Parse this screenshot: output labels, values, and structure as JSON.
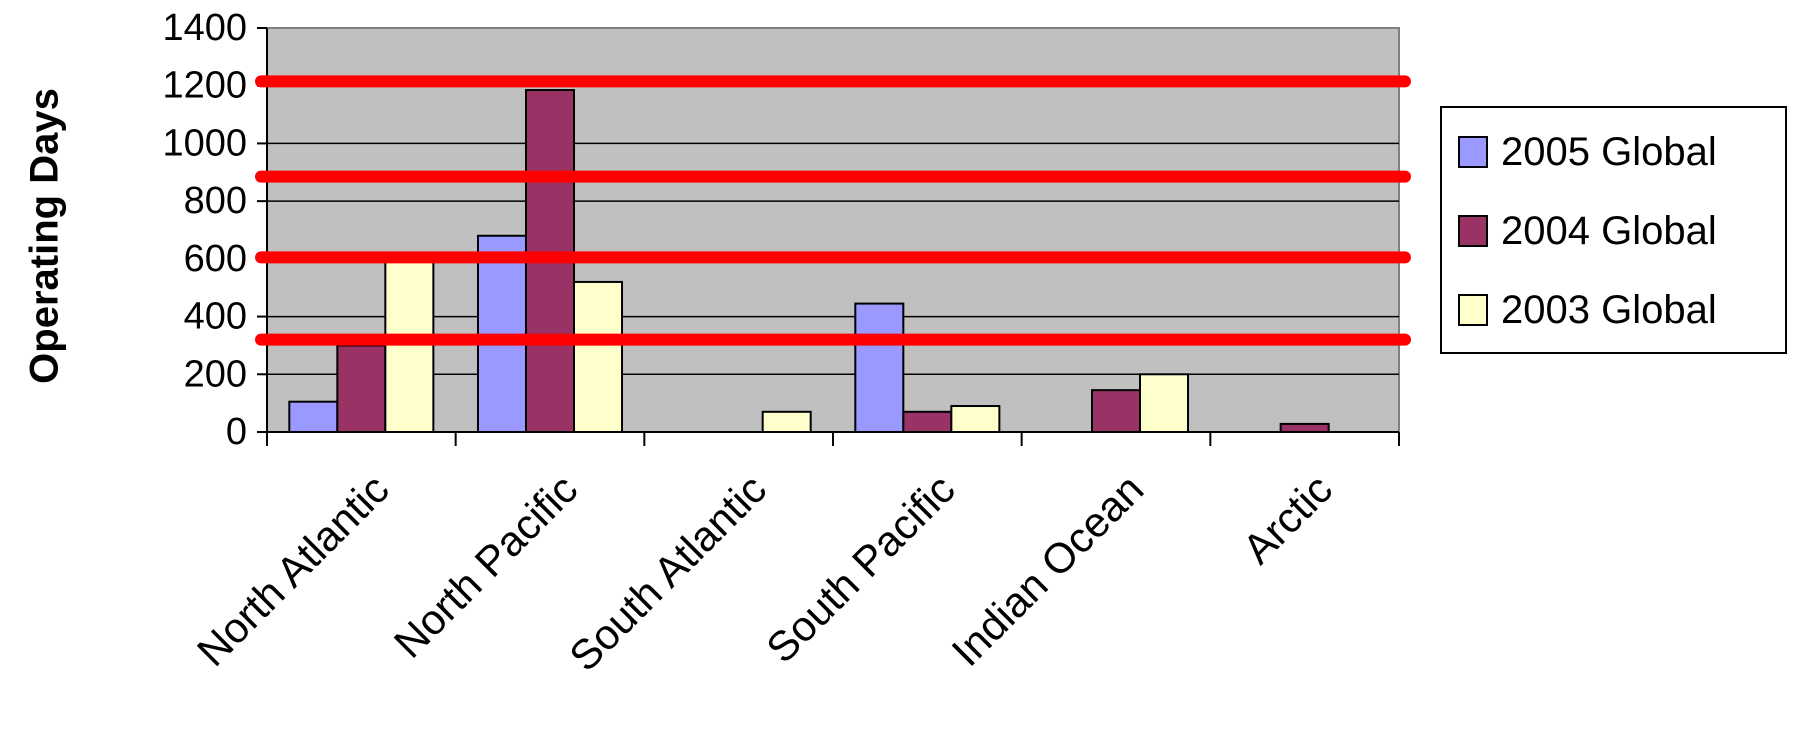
{
  "chart_data": {
    "type": "bar",
    "title": "",
    "xlabel": "",
    "ylabel": "Operating Days",
    "ylim": [
      0,
      1400
    ],
    "yticks": [
      0,
      200,
      400,
      600,
      800,
      1000,
      1200,
      1400
    ],
    "grid": true,
    "legend_position": "right",
    "categories": [
      "North Atlantic",
      "North Pacific",
      "South Atlantic",
      "South Pacific",
      "Indian Ocean",
      "Arctic"
    ],
    "series": [
      {
        "name": "2005 Global",
        "color": "#9999FF",
        "values": [
          105,
          680,
          0,
          445,
          0,
          0
        ]
      },
      {
        "name": "2004 Global",
        "color": "#993366",
        "values": [
          300,
          1185,
          0,
          70,
          145,
          28
        ]
      },
      {
        "name": "2003 Global",
        "color": "#FFFFCC",
        "values": [
          600,
          520,
          70,
          90,
          200,
          0
        ]
      }
    ],
    "reference_lines": {
      "color": "#FF0000",
      "values": [
        1215,
        885,
        605,
        320
      ]
    },
    "plot_background": "#C0C0C0"
  }
}
